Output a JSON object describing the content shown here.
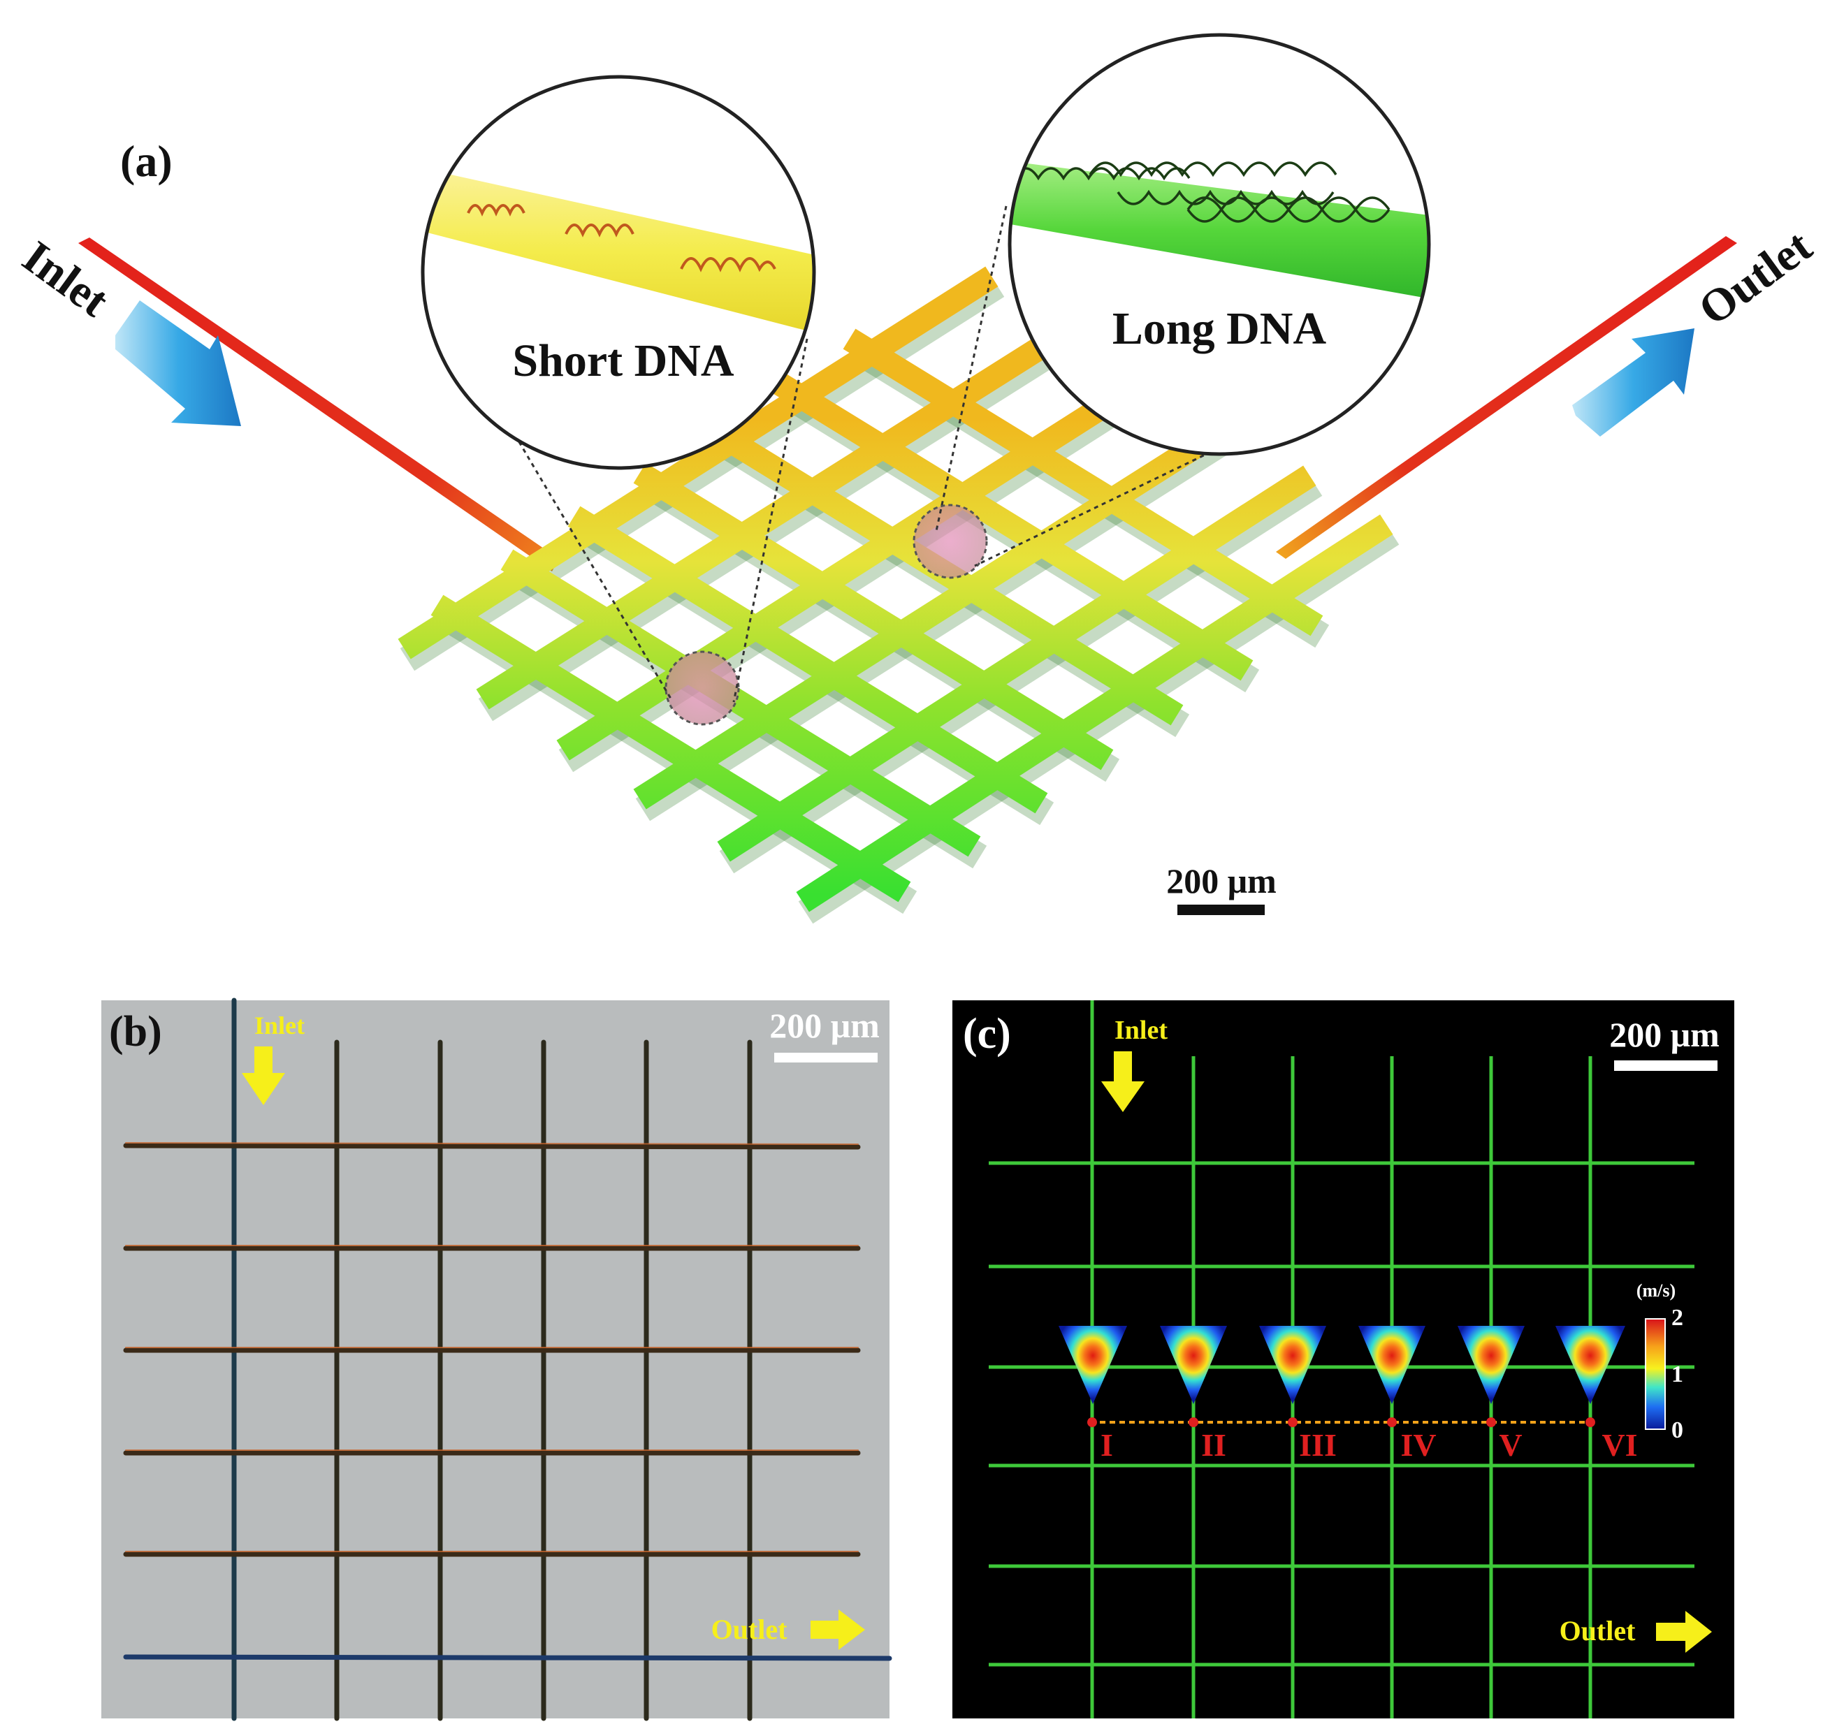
{
  "panel_a": {
    "tag": "(a)",
    "inlet": "Inlet",
    "outlet": "Outlet",
    "short_dna": "Short DNA",
    "long_dna": "Long DNA",
    "scale": "200 μm",
    "colors": {
      "hot": "#e0261f",
      "mid": "#f6e63a",
      "cool": "#39e02a",
      "arrow": "#2aa3e0"
    }
  },
  "panel_b": {
    "tag": "(b)",
    "inlet": "Inlet",
    "outlet": "Outlet",
    "scale": "200 μm",
    "background": "#b9bcbd"
  },
  "panel_c": {
    "tag": "(c)",
    "inlet": "Inlet",
    "outlet": "Outlet",
    "scale": "200 μm",
    "colorbar_unit": "(m/s)",
    "colorbar_ticks": [
      "2",
      "1",
      "0"
    ],
    "sections": [
      "I",
      "II",
      "III",
      "IV",
      "V",
      "VI"
    ],
    "background": "#000000",
    "grid_color": "#3ec93a"
  }
}
